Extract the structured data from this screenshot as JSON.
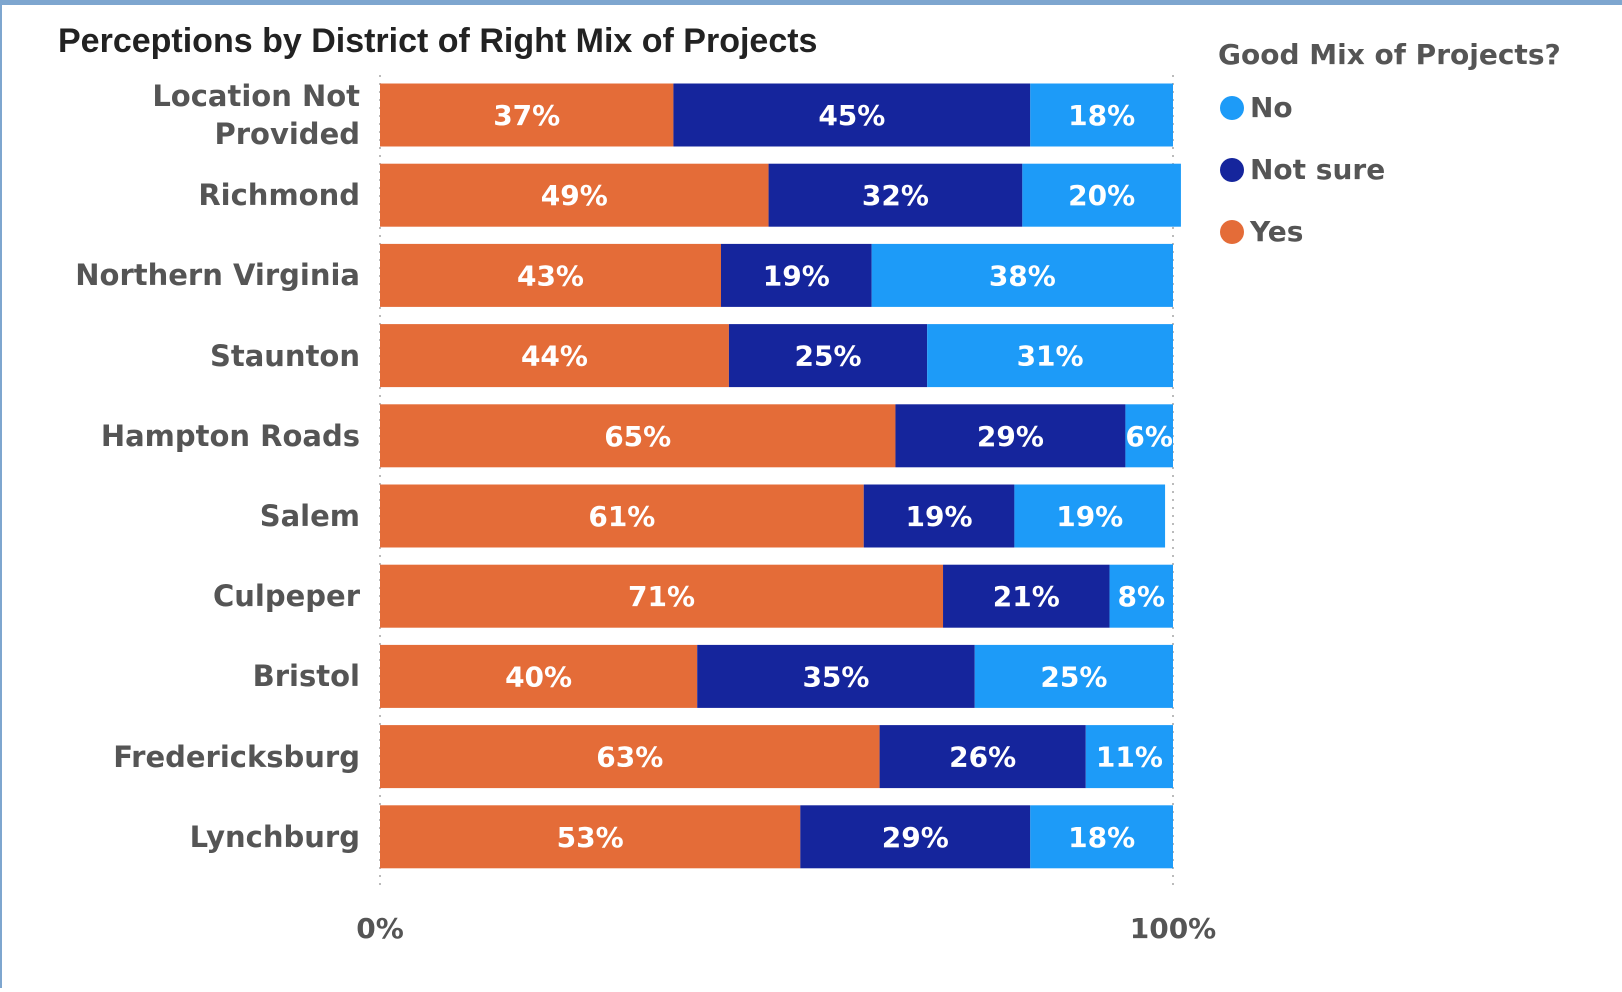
{
  "chart_data": {
    "type": "stacked-barh",
    "title": "Perceptions by District of Right Mix of Projects",
    "legend_title": "Good Mix of Projects?",
    "legend": "right",
    "categories": [
      "Location Not Provided",
      "Richmond",
      "Northern Virginia",
      "Staunton",
      "Hampton Roads",
      "Salem",
      "Culpeper",
      "Bristol",
      "Fredericksburg",
      "Lynchburg"
    ],
    "series": [
      {
        "name": "Yes",
        "color": "#e46c38",
        "values": [
          37,
          49,
          43,
          44,
          65,
          61,
          71,
          40,
          63,
          53
        ],
        "value_labels": [
          "37%",
          "49%",
          "43%",
          "44%",
          "65%",
          "61%",
          "71%",
          "40%",
          "63%",
          "53%"
        ]
      },
      {
        "name": "Not sure",
        "color": "#15259c",
        "values": [
          45,
          32,
          19,
          25,
          29,
          19,
          21,
          35,
          26,
          29
        ],
        "value_labels": [
          "45%",
          "32%",
          "19%",
          "25%",
          "29%",
          "19%",
          "21%",
          "35%",
          "26%",
          "29%"
        ]
      },
      {
        "name": "No",
        "color": "#1d9bf8",
        "values": [
          18,
          20,
          38,
          31,
          6,
          19,
          8,
          25,
          11,
          18
        ],
        "value_labels": [
          "18%",
          "20%",
          "38%",
          "31%",
          "6%",
          "19%",
          "8%",
          "25%",
          "11%",
          "18%"
        ]
      }
    ],
    "xlim": [
      0,
      100
    ],
    "xticks": [
      {
        "value": 0,
        "label": "0%"
      },
      {
        "value": 100,
        "label": "100%"
      }
    ]
  }
}
